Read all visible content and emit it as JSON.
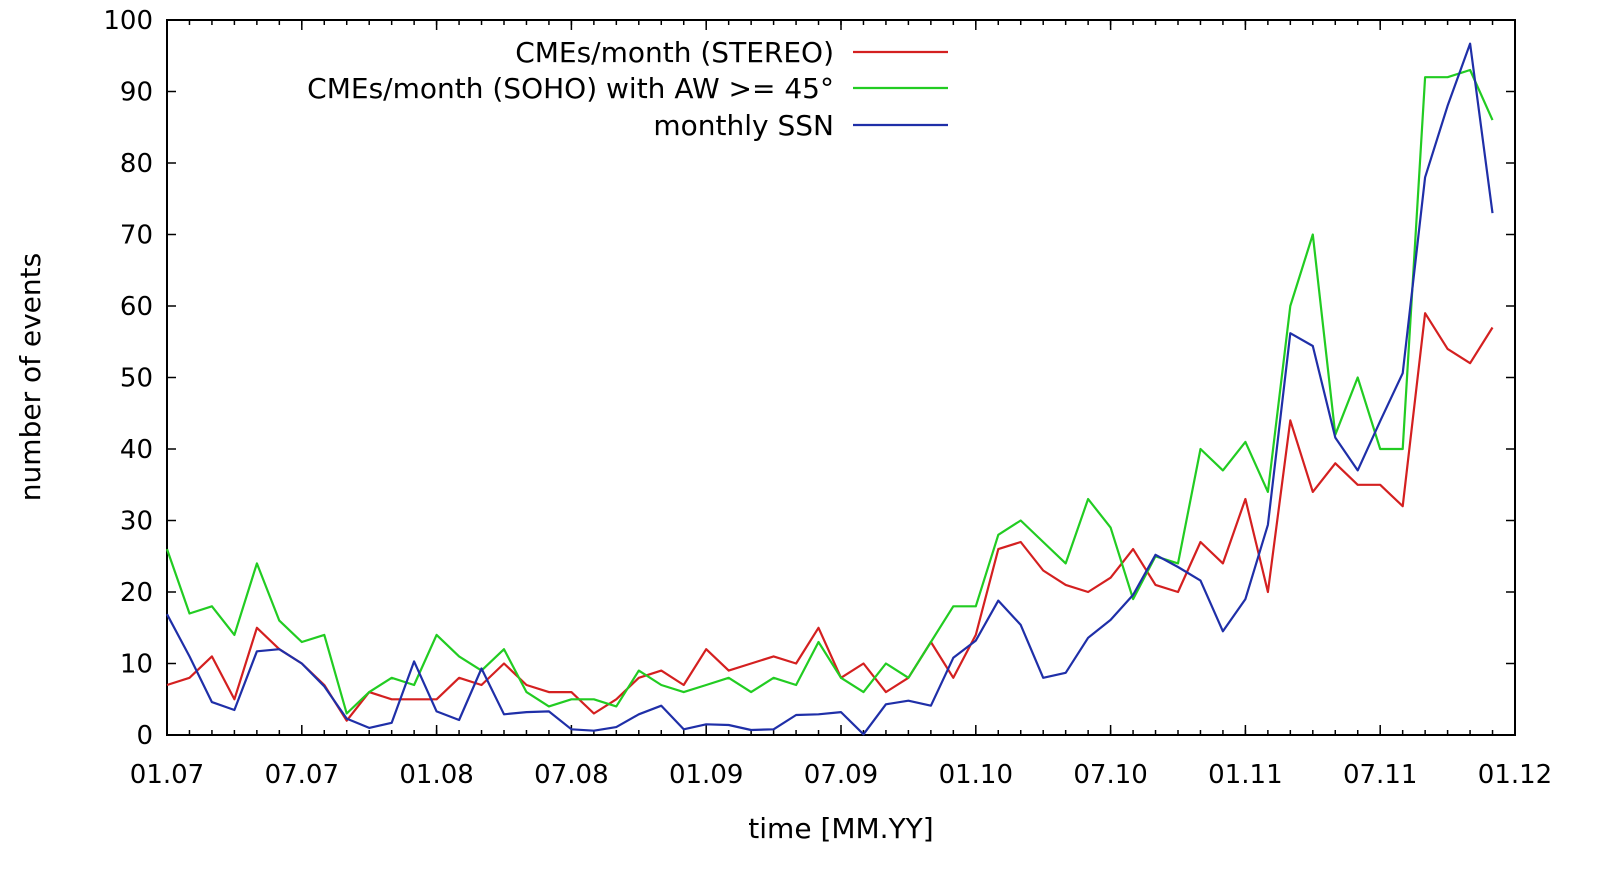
{
  "chart_data": {
    "type": "line",
    "xlabel": "time [MM.YY]",
    "ylabel": "number of events",
    "xlim": [
      "2007-01",
      "2012-01"
    ],
    "ylim": [
      0,
      100
    ],
    "grid": false,
    "legend_position": "top",
    "x_ticks": [
      {
        "date": "2007-01",
        "label": "01.07"
      },
      {
        "date": "2007-07",
        "label": "07.07"
      },
      {
        "date": "2008-01",
        "label": "01.08"
      },
      {
        "date": "2008-07",
        "label": "07.08"
      },
      {
        "date": "2009-01",
        "label": "01.09"
      },
      {
        "date": "2009-07",
        "label": "07.09"
      },
      {
        "date": "2010-01",
        "label": "01.10"
      },
      {
        "date": "2010-07",
        "label": "07.10"
      },
      {
        "date": "2011-01",
        "label": "01.11"
      },
      {
        "date": "2011-07",
        "label": "07.11"
      },
      {
        "date": "2012-01",
        "label": "01.12"
      }
    ],
    "y_ticks": [
      0,
      10,
      20,
      30,
      40,
      50,
      60,
      70,
      80,
      90,
      100
    ],
    "x": [
      "2007-01",
      "2007-02",
      "2007-03",
      "2007-04",
      "2007-05",
      "2007-06",
      "2007-07",
      "2007-08",
      "2007-09",
      "2007-10",
      "2007-11",
      "2007-12",
      "2008-01",
      "2008-02",
      "2008-03",
      "2008-04",
      "2008-05",
      "2008-06",
      "2008-07",
      "2008-08",
      "2008-09",
      "2008-10",
      "2008-11",
      "2008-12",
      "2009-01",
      "2009-02",
      "2009-03",
      "2009-04",
      "2009-05",
      "2009-06",
      "2009-07",
      "2009-08",
      "2009-09",
      "2009-10",
      "2009-11",
      "2009-12",
      "2010-01",
      "2010-02",
      "2010-03",
      "2010-04",
      "2010-05",
      "2010-06",
      "2010-07",
      "2010-08",
      "2010-09",
      "2010-10",
      "2010-11",
      "2010-12",
      "2011-01",
      "2011-02",
      "2011-03",
      "2011-04",
      "2011-05",
      "2011-06",
      "2011-07",
      "2011-08",
      "2011-09",
      "2011-10",
      "2011-11",
      "2011-12"
    ],
    "series": [
      {
        "name": "CMEs/month (STEREO)",
        "color": "#d42020",
        "values": [
          7,
          8,
          11,
          5,
          15,
          12,
          10,
          7,
          2,
          6,
          5,
          5,
          5,
          8,
          7,
          10,
          7,
          6,
          6,
          3,
          5,
          8,
          9,
          7,
          12,
          9,
          10,
          11,
          10,
          15,
          8,
          10,
          6,
          8,
          13,
          8,
          14,
          26,
          27,
          23,
          21,
          20,
          22,
          26,
          21,
          20,
          27,
          24,
          33,
          20,
          44,
          34,
          38,
          35,
          35,
          32,
          59,
          54,
          52,
          57
        ]
      },
      {
        "name": "CMEs/month (SOHO) with AW >= 45°",
        "color": "#22cc22",
        "values": [
          26,
          17,
          18,
          14,
          24,
          16,
          13,
          14,
          3,
          6,
          8,
          7,
          14,
          11,
          9,
          12,
          6,
          4,
          5,
          5,
          4,
          9,
          7,
          6,
          7,
          8,
          6,
          8,
          7,
          13,
          8,
          6,
          10,
          8,
          13,
          18,
          18,
          28,
          30,
          27,
          24,
          33,
          29,
          19,
          25,
          24,
          40,
          37,
          41,
          34,
          60,
          70,
          42,
          50,
          40,
          40,
          92,
          92,
          93,
          86
        ]
      },
      {
        "name": "monthly SSN",
        "color": "#1f2fa8",
        "values": [
          16.9,
          11,
          4.6,
          3.5,
          11.7,
          12,
          10,
          6.8,
          2.3,
          1,
          1.7,
          10.3,
          3.3,
          2.1,
          9.3,
          2.9,
          3.2,
          3.3,
          0.8,
          0.6,
          1.1,
          2.9,
          4.1,
          0.8,
          1.5,
          1.4,
          0.7,
          0.8,
          2.8,
          2.9,
          3.2,
          0.1,
          4.3,
          4.8,
          4.1,
          10.8,
          13.2,
          18.8,
          15.4,
          8,
          8.7,
          13.6,
          16.1,
          19.6,
          25.2,
          23.5,
          21.6,
          14.5,
          19,
          29.4,
          56.2,
          54.4,
          41.6,
          37,
          43.9,
          50.6,
          78,
          88,
          96.7,
          73
        ]
      }
    ]
  }
}
